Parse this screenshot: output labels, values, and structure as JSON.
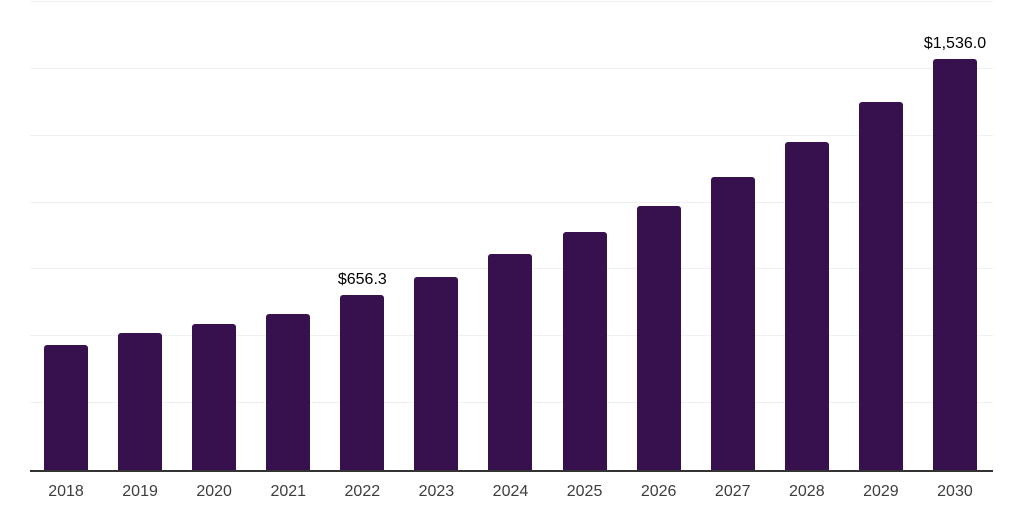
{
  "chart_data": {
    "type": "bar",
    "title": "",
    "xlabel": "",
    "ylabel": "",
    "categories": [
      "2018",
      "2019",
      "2020",
      "2021",
      "2022",
      "2023",
      "2024",
      "2025",
      "2026",
      "2027",
      "2028",
      "2029",
      "2030"
    ],
    "values": [
      466,
      514,
      547,
      584,
      656.3,
      722,
      807,
      889,
      988,
      1097,
      1227,
      1376,
      1536.0
    ],
    "bar_labels": [
      null,
      null,
      null,
      null,
      "$656.3",
      null,
      null,
      null,
      null,
      null,
      null,
      null,
      "$1,536.0"
    ],
    "ylim": [
      0,
      1750
    ],
    "gridline_step": 250,
    "grid": "horizontal",
    "legend": "none",
    "colors": {
      "bar": "#36114E",
      "axis_line": "#333333",
      "gridline": "#f0f0f0",
      "tick_label": "#3d3d3d",
      "data_label": "#000000",
      "background": "#ffffff"
    }
  }
}
